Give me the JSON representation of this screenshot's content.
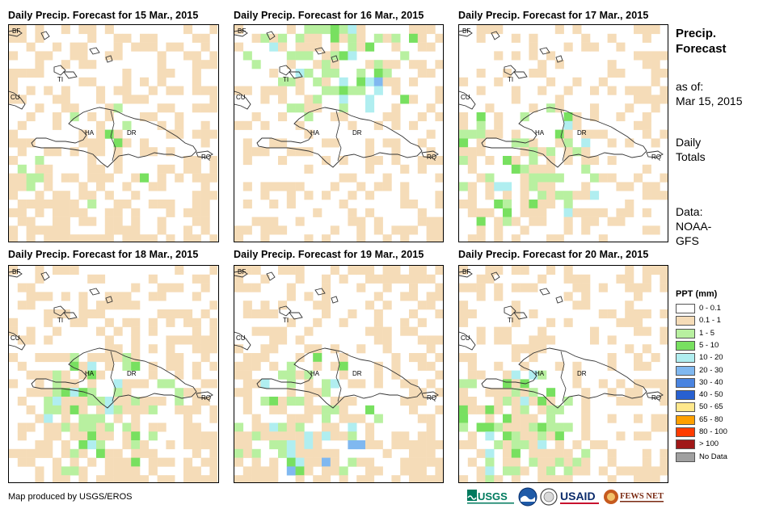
{
  "panels": [
    {
      "title": "Daily Precip. Forecast for 15 Mar., 2015"
    },
    {
      "title": "Daily Precip. Forecast for 16 Mar., 2015"
    },
    {
      "title": "Daily Precip. Forecast for 17 Mar., 2015"
    },
    {
      "title": "Daily Precip. Forecast for 18 Mar., 2015"
    },
    {
      "title": "Daily Precip. Forecast for 19 Mar., 2015"
    },
    {
      "title": "Daily Precip. Forecast for 20 Mar., 2015"
    }
  ],
  "map_labels": {
    "bf": "BF",
    "cu": "CU",
    "ha": "HA",
    "dr": "DR",
    "rq": "RQ",
    "ti": "TI"
  },
  "side": {
    "title_line1": "Precip.",
    "title_line2": "Forecast",
    "asof_label": "as of:",
    "asof_date": "Mar 15, 2015",
    "daily1": "Daily",
    "daily2": "Totals",
    "data1": "Data:",
    "data2": "NOAA-",
    "data3": "GFS"
  },
  "legend": {
    "title": "PPT (mm)",
    "items": [
      {
        "label": "0 - 0.1",
        "color": "#ffffff"
      },
      {
        "label": "0.1 - 1",
        "color": "#f5dcb8"
      },
      {
        "label": "1 - 5",
        "color": "#b8f0a0"
      },
      {
        "label": "5 - 10",
        "color": "#78e060"
      },
      {
        "label": "10 - 20",
        "color": "#b0eef0"
      },
      {
        "label": "20 - 30",
        "color": "#80b8f0"
      },
      {
        "label": "30 - 40",
        "color": "#4a84e0"
      },
      {
        "label": "40 - 50",
        "color": "#2860d0"
      },
      {
        "label": "50 - 65",
        "color": "#ffe88c"
      },
      {
        "label": "65 - 80",
        "color": "#ffa000"
      },
      {
        "label": "80 - 100",
        "color": "#ff3c00"
      },
      {
        "label": "> 100",
        "color": "#a01818"
      },
      {
        "label": "No Data",
        "color": "#a0a0a0"
      }
    ]
  },
  "footer": {
    "credit": "Map produced by USGS/EROS"
  },
  "logos": {
    "usgs": "USGS",
    "usaid": "USAID",
    "fewsnet": "FEWS NET",
    "noaa": "NOAA"
  }
}
